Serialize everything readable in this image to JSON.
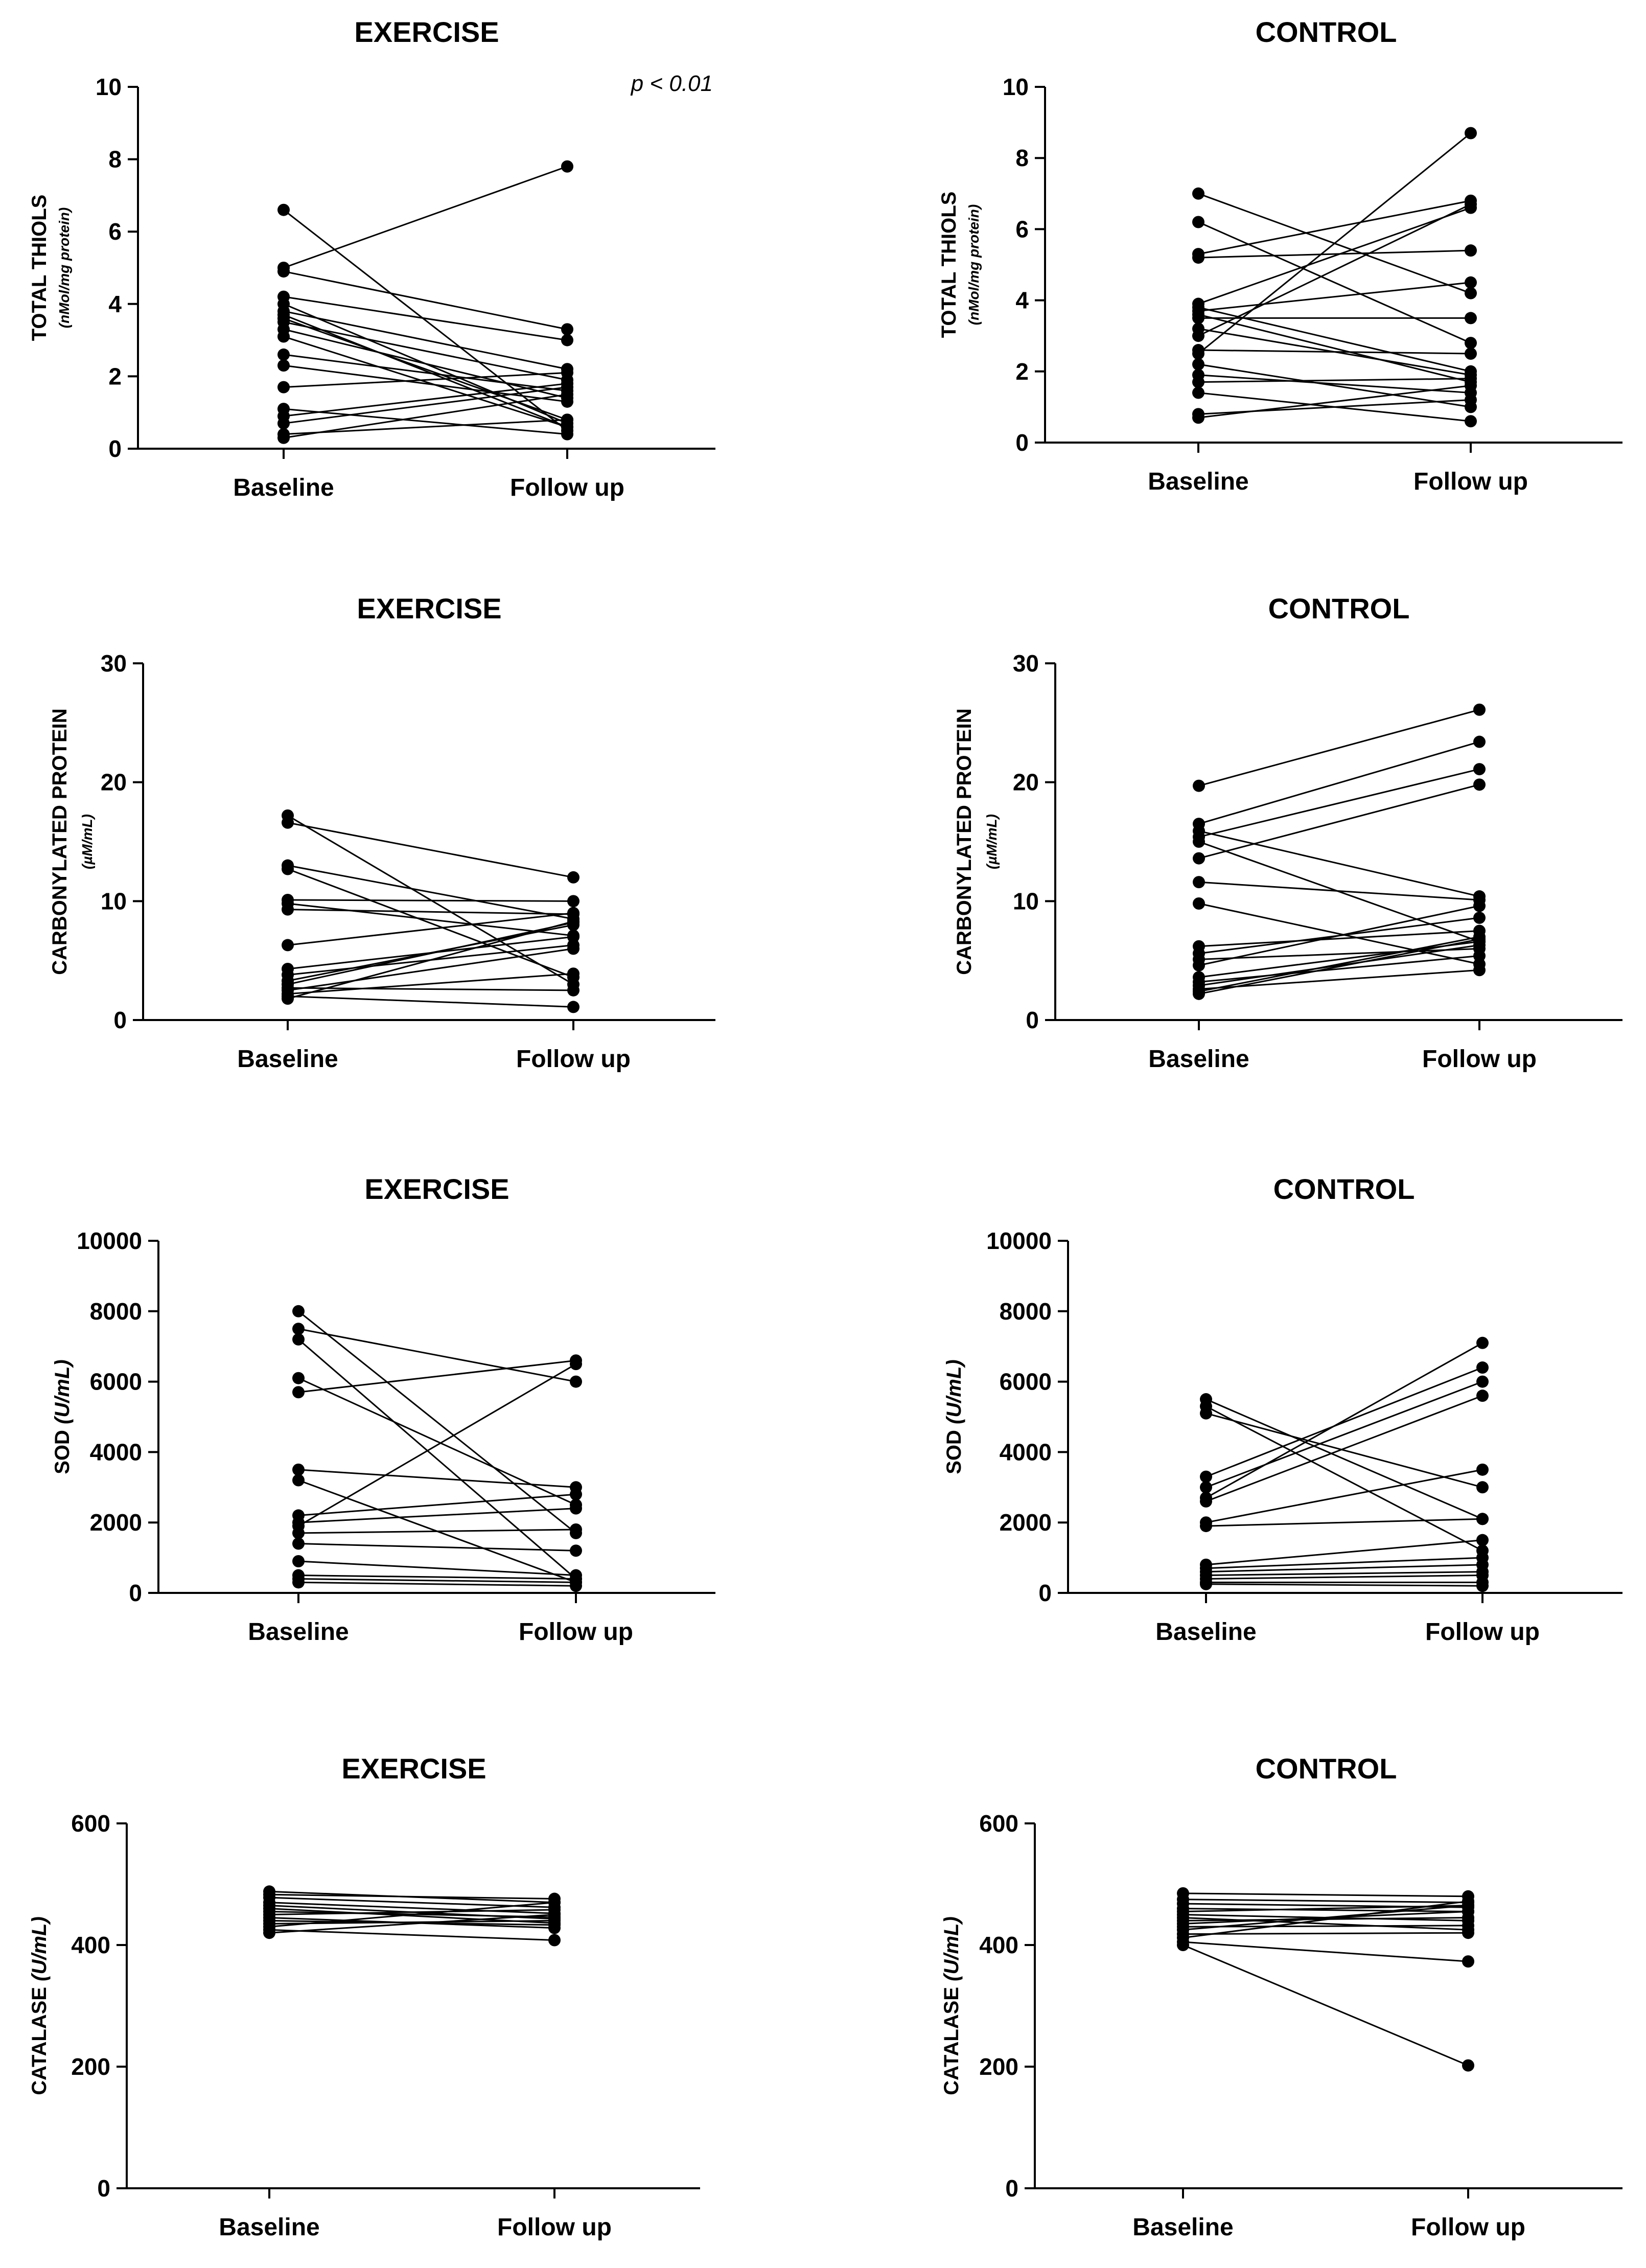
{
  "chart_data": [
    {
      "type": "line",
      "title": "EXERCISE",
      "ylabel": "TOTAL THIOLS",
      "ylabel_sub": "(nMol/mg protein)",
      "annotation": "p < 0.01",
      "categories": [
        "Baseline",
        "Follow up"
      ],
      "ylim": [
        0,
        10
      ],
      "yticks": [
        0,
        2,
        4,
        6,
        8,
        10
      ],
      "yticklabels": [
        "0",
        "2",
        "4",
        "6",
        "8",
        "10"
      ],
      "pairs": [
        [
          6.6,
          0.5
        ],
        [
          5.0,
          7.8
        ],
        [
          4.9,
          3.3
        ],
        [
          4.2,
          3.0
        ],
        [
          4.0,
          0.7
        ],
        [
          3.8,
          2.2
        ],
        [
          3.7,
          0.6
        ],
        [
          3.6,
          0.8
        ],
        [
          3.5,
          1.9
        ],
        [
          3.3,
          1.4
        ],
        [
          3.1,
          0.6
        ],
        [
          2.6,
          1.6
        ],
        [
          2.3,
          1.3
        ],
        [
          1.7,
          2.1
        ],
        [
          1.1,
          0.4
        ],
        [
          0.9,
          1.8
        ],
        [
          0.7,
          1.7
        ],
        [
          0.4,
          0.8
        ],
        [
          0.3,
          1.5
        ]
      ]
    },
    {
      "type": "line",
      "title": "CONTROL",
      "ylabel": "TOTAL THIOLS",
      "ylabel_sub": "(nMol/mg protein)",
      "categories": [
        "Baseline",
        "Follow up"
      ],
      "ylim": [
        0,
        10
      ],
      "yticks": [
        0,
        2,
        4,
        6,
        8,
        10
      ],
      "yticklabels": [
        "0",
        "2",
        "4",
        "6",
        "8",
        "10"
      ],
      "pairs": [
        [
          7.0,
          4.2
        ],
        [
          6.2,
          2.8
        ],
        [
          5.3,
          6.8
        ],
        [
          5.2,
          5.4
        ],
        [
          3.9,
          6.6
        ],
        [
          3.8,
          2.0
        ],
        [
          3.7,
          4.5
        ],
        [
          3.6,
          1.7
        ],
        [
          3.5,
          3.5
        ],
        [
          3.2,
          1.9
        ],
        [
          3.0,
          6.7
        ],
        [
          2.6,
          2.5
        ],
        [
          2.5,
          8.7
        ],
        [
          2.2,
          1.0
        ],
        [
          1.9,
          1.4
        ],
        [
          1.7,
          1.8
        ],
        [
          1.4,
          0.6
        ],
        [
          0.8,
          1.2
        ],
        [
          0.7,
          1.6
        ]
      ]
    },
    {
      "type": "line",
      "title": "EXERCISE",
      "ylabel": "CARBONYLATED PROTEIN",
      "ylabel_sub": "(µM/mL)",
      "categories": [
        "Baseline",
        "Follow up"
      ],
      "ylim": [
        0,
        30
      ],
      "yticks": [
        0,
        10,
        20,
        30
      ],
      "yticklabels": [
        "0",
        "10",
        "20",
        "30"
      ],
      "pairs": [
        [
          17.2,
          3.0
        ],
        [
          16.6,
          12.0
        ],
        [
          13.0,
          8.5
        ],
        [
          12.7,
          3.6
        ],
        [
          10.1,
          10.0
        ],
        [
          9.8,
          7.1
        ],
        [
          9.3,
          8.9
        ],
        [
          6.3,
          9.0
        ],
        [
          4.3,
          7.0
        ],
        [
          3.8,
          6.3
        ],
        [
          3.3,
          8.0
        ],
        [
          3.0,
          8.2
        ],
        [
          2.7,
          2.5
        ],
        [
          2.5,
          6.0
        ],
        [
          2.2,
          3.9
        ],
        [
          2.0,
          1.1
        ],
        [
          1.8,
          8.3
        ]
      ]
    },
    {
      "type": "line",
      "title": "CONTROL",
      "ylabel": "CARBONYLATED PROTEIN",
      "ylabel_sub": "(µM/mL)",
      "categories": [
        "Baseline",
        "Follow up"
      ],
      "ylim": [
        0,
        30
      ],
      "yticks": [
        0,
        10,
        20,
        30
      ],
      "yticklabels": [
        "0",
        "10",
        "20",
        "30"
      ],
      "pairs": [
        [
          19.7,
          26.1
        ],
        [
          16.5,
          23.4
        ],
        [
          15.9,
          10.4
        ],
        [
          15.4,
          21.1
        ],
        [
          15.0,
          6.6
        ],
        [
          13.6,
          19.8
        ],
        [
          11.6,
          10.1
        ],
        [
          9.8,
          4.7
        ],
        [
          6.2,
          7.5
        ],
        [
          5.6,
          8.6
        ],
        [
          5.1,
          6.0
        ],
        [
          4.6,
          9.6
        ],
        [
          3.6,
          6.6
        ],
        [
          3.2,
          5.4
        ],
        [
          2.9,
          6.3
        ],
        [
          2.6,
          4.2
        ],
        [
          2.4,
          7.0
        ],
        [
          2.2,
          6.8
        ]
      ]
    },
    {
      "type": "line",
      "title": "EXERCISE",
      "ylabel": "SOD",
      "ylabel_sub": "(U/mL)",
      "categories": [
        "Baseline",
        "Follow up"
      ],
      "ylim": [
        0,
        10000
      ],
      "yticks": [
        0,
        2000,
        4000,
        6000,
        8000,
        10000
      ],
      "yticklabels": [
        "0",
        "2000",
        "4000",
        "6000",
        "8000",
        "10000"
      ],
      "pairs": [
        [
          8000,
          1700
        ],
        [
          7500,
          6000
        ],
        [
          7200,
          400
        ],
        [
          6100,
          2500
        ],
        [
          5700,
          6600
        ],
        [
          3500,
          3000
        ],
        [
          3200,
          300
        ],
        [
          2200,
          2800
        ],
        [
          2000,
          2400
        ],
        [
          1900,
          6500
        ],
        [
          1700,
          1800
        ],
        [
          1400,
          1200
        ],
        [
          900,
          500
        ],
        [
          500,
          400
        ],
        [
          400,
          300
        ],
        [
          300,
          200
        ]
      ]
    },
    {
      "type": "line",
      "title": "CONTROL",
      "ylabel": "SOD",
      "ylabel_sub": "(U/mL)",
      "categories": [
        "Baseline",
        "Follow up"
      ],
      "ylim": [
        0,
        10000
      ],
      "yticks": [
        0,
        2000,
        4000,
        6000,
        8000,
        10000
      ],
      "yticklabels": [
        "0",
        "2000",
        "4000",
        "6000",
        "8000",
        "10000"
      ],
      "pairs": [
        [
          5500,
          2100
        ],
        [
          5300,
          1200
        ],
        [
          5100,
          3000
        ],
        [
          3300,
          6400
        ],
        [
          3000,
          6000
        ],
        [
          2700,
          7100
        ],
        [
          2600,
          5600
        ],
        [
          2000,
          3500
        ],
        [
          1900,
          2100
        ],
        [
          800,
          1500
        ],
        [
          700,
          1000
        ],
        [
          600,
          800
        ],
        [
          500,
          600
        ],
        [
          400,
          500
        ],
        [
          300,
          300
        ],
        [
          250,
          200
        ]
      ]
    },
    {
      "type": "line",
      "title": "EXERCISE",
      "ylabel": "CATALASE",
      "ylabel_sub": "(U/mL)",
      "categories": [
        "Baseline",
        "Follow up"
      ],
      "ylim": [
        0,
        600
      ],
      "yticks": [
        0,
        200,
        400,
        600
      ],
      "yticklabels": [
        "0",
        "200",
        "400",
        "600"
      ],
      "pairs": [
        [
          488,
          470
        ],
        [
          483,
          476
        ],
        [
          478,
          462
        ],
        [
          470,
          452
        ],
        [
          465,
          443
        ],
        [
          460,
          436
        ],
        [
          455,
          446
        ],
        [
          450,
          458
        ],
        [
          445,
          428
        ],
        [
          440,
          433
        ],
        [
          435,
          440
        ],
        [
          430,
          470
        ],
        [
          425,
          408
        ],
        [
          420,
          450
        ]
      ]
    },
    {
      "type": "line",
      "title": "CONTROL",
      "ylabel": "CATALASE",
      "ylabel_sub": "(U/mL)",
      "categories": [
        "Baseline",
        "Follow up"
      ],
      "ylim": [
        0,
        600
      ],
      "yticks": [
        0,
        200,
        400,
        600
      ],
      "yticklabels": [
        "0",
        "200",
        "400",
        "600"
      ],
      "pairs": [
        [
          485,
          480
        ],
        [
          475,
          470
        ],
        [
          468,
          462
        ],
        [
          460,
          455
        ],
        [
          455,
          465
        ],
        [
          450,
          440
        ],
        [
          445,
          425
        ],
        [
          440,
          445
        ],
        [
          435,
          455
        ],
        [
          430,
          432
        ],
        [
          425,
          465
        ],
        [
          418,
          420
        ],
        [
          412,
          472
        ],
        [
          405,
          373
        ],
        [
          400,
          202
        ]
      ]
    }
  ]
}
